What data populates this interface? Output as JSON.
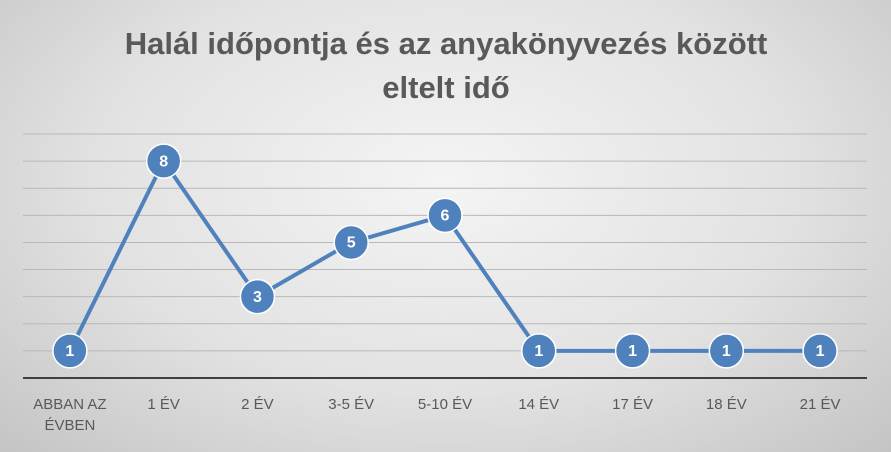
{
  "chart_data": {
    "type": "line",
    "title": "Halál időpontja és az anyakönyvezés között eltelt idő",
    "categories": [
      "ABBAN AZ ÉVBEN",
      "1 ÉV",
      "2 ÉV",
      "3-5 ÉV",
      "5-10 ÉV",
      "14 ÉV",
      "17 ÉV",
      "18 ÉV",
      "21 ÉV"
    ],
    "values": [
      1,
      8,
      3,
      5,
      6,
      1,
      1,
      1,
      1
    ],
    "color": "#4f81bd",
    "ylim": [
      0,
      9
    ],
    "yticks": [
      0,
      1,
      2,
      3,
      4,
      5,
      6,
      7,
      8,
      9
    ],
    "grid": true
  }
}
